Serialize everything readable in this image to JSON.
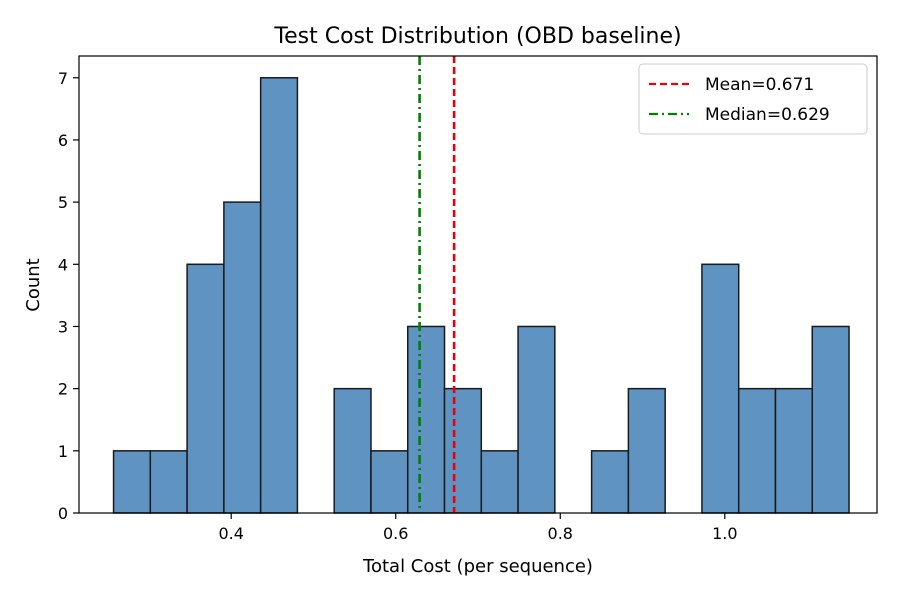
{
  "chart_data": {
    "type": "histogram",
    "title": "Test Cost Distribution (OBD baseline)",
    "xlabel": "Total Cost (per sequence)",
    "ylabel": "Count",
    "xlim": [
      0.215,
      1.185
    ],
    "ylim": [
      0,
      7.35
    ],
    "bin_edges": [
      0.257,
      0.3017,
      0.3464,
      0.3911,
      0.4358,
      0.4805,
      0.5252,
      0.5699,
      0.6146,
      0.6593,
      0.704,
      0.7487,
      0.7934,
      0.8381,
      0.8828,
      0.9275,
      0.9722,
      1.0169,
      1.0616,
      1.1063,
      1.151
    ],
    "counts": [
      1,
      1,
      4,
      5,
      7,
      0,
      2,
      1,
      3,
      2,
      1,
      3,
      0,
      1,
      2,
      0,
      4,
      2,
      2,
      3
    ],
    "x_ticks": [
      0.4,
      0.6,
      0.8,
      1.0
    ],
    "x_tick_labels": [
      "0.4",
      "0.6",
      "0.8",
      "1.0"
    ],
    "y_ticks": [
      0,
      1,
      2,
      3,
      4,
      5,
      6,
      7
    ],
    "y_tick_labels": [
      "0",
      "1",
      "2",
      "3",
      "4",
      "5",
      "6",
      "7"
    ],
    "bar_color": "#5f93c1",
    "edge_color": "#1a1a1a",
    "reference_lines": [
      {
        "name": "mean",
        "label": "Mean=0.671",
        "value": 0.671,
        "color": "#e8000b",
        "style": "dashed"
      },
      {
        "name": "median",
        "label": "Median=0.629",
        "value": 0.629,
        "color": "#007f00",
        "style": "dashdot"
      }
    ],
    "legend_position": "top-right",
    "grid": false
  }
}
